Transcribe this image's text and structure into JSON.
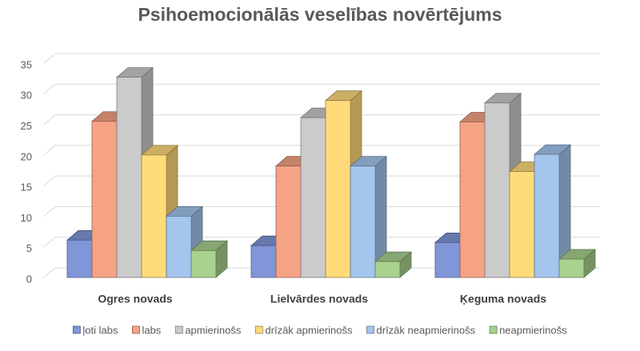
{
  "chart_data": {
    "type": "bar3d",
    "title": "Psihoemocionālās veselības novērtējums",
    "categories": [
      "Ogres novads",
      "Lielvārdes novads",
      "Ķeguma novads"
    ],
    "series": [
      {
        "name": "ļoti labs",
        "color": "#8096d8",
        "values": [
          6.1,
          5.2,
          5.7
        ]
      },
      {
        "name": "labs",
        "color": "#f5a285",
        "values": [
          25.5,
          18.2,
          25.4
        ]
      },
      {
        "name": "apmierinošs",
        "color": "#cbcbcb",
        "values": [
          32.7,
          26.1,
          28.5
        ]
      },
      {
        "name": "drīzāk apmierinošs",
        "color": "#ffdb7a",
        "values": [
          20,
          28.9,
          17.3
        ]
      },
      {
        "name": "drīzāk neapmierinošs",
        "color": "#a3c5ee",
        "values": [
          10,
          18.2,
          20.1
        ]
      },
      {
        "name": "neapmierinošs",
        "color": "#a9d18e",
        "values": [
          4.4,
          2.6,
          3
        ]
      }
    ],
    "ylim": [
      0,
      35
    ],
    "yticks": [
      0,
      5,
      10,
      15,
      20,
      25,
      30,
      35
    ],
    "grid": true,
    "legend": "bottom"
  }
}
